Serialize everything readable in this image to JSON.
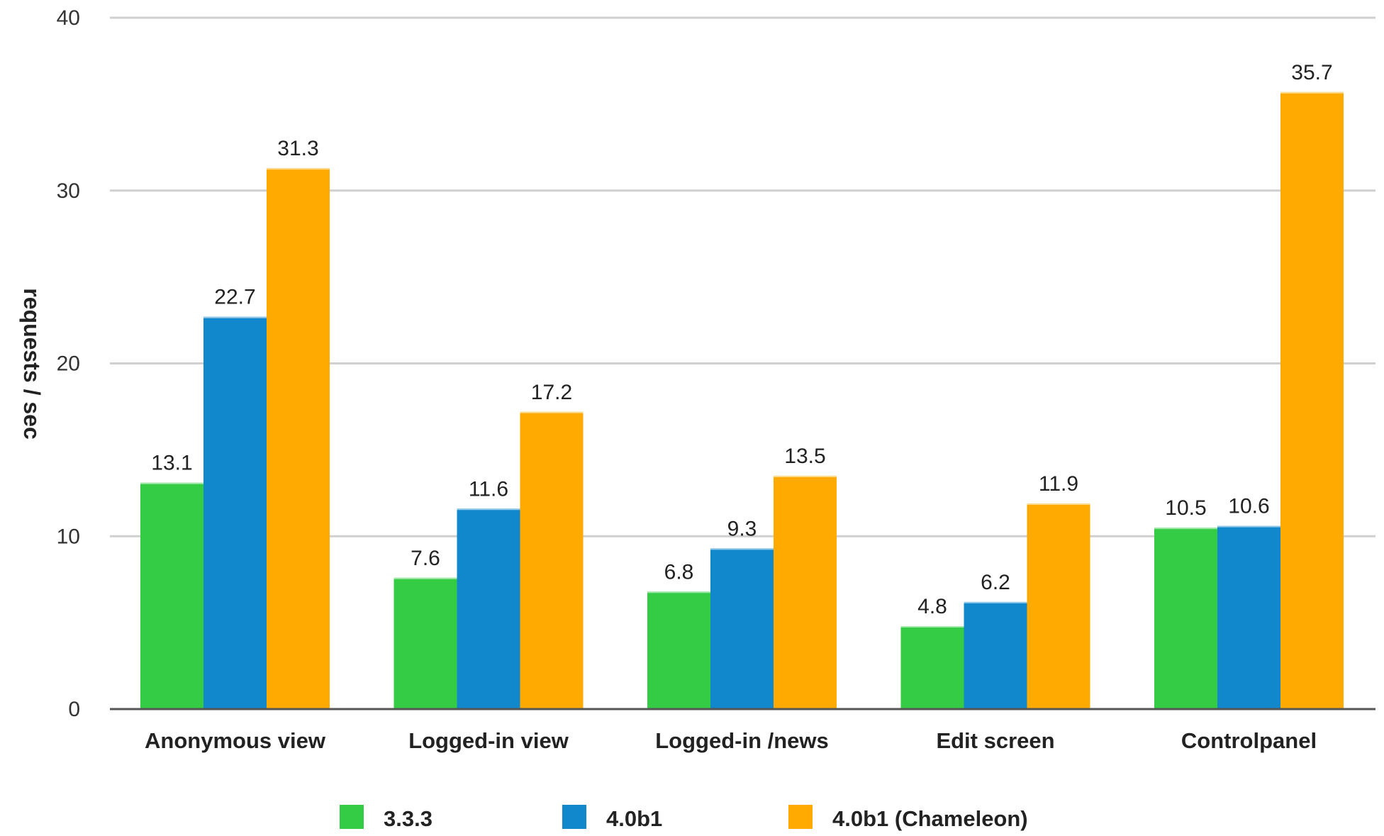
{
  "chart_data": {
    "type": "bar",
    "title": "",
    "xlabel": "",
    "ylabel": "requests / sec",
    "ylim": [
      0,
      40
    ],
    "yticks": [
      "0",
      "10",
      "20",
      "30",
      "40"
    ],
    "grid": true,
    "legend_position": "bottom",
    "categories": [
      "Anonymous view",
      "Logged-in view",
      "Logged-in /news",
      "Edit screen",
      "Controlpanel"
    ],
    "series": [
      {
        "name": "3.3.3",
        "color": "#33cc44",
        "values": [
          13.1,
          7.6,
          6.8,
          4.8,
          10.5
        ],
        "labels": [
          "13.1",
          "7.6",
          "6.8",
          "4.8",
          "10.5"
        ]
      },
      {
        "name": "4.0b1",
        "color": "#1188cc",
        "values": [
          22.7,
          11.6,
          9.3,
          6.2,
          10.6
        ],
        "labels": [
          "22.7",
          "11.6",
          "9.3",
          "6.2",
          "10.6"
        ]
      },
      {
        "name": "4.0b1 (Chameleon)",
        "color": "#ffaa00",
        "values": [
          31.3,
          17.2,
          13.5,
          11.9,
          35.7
        ],
        "labels": [
          "31.3",
          "17.2",
          "13.5",
          "11.9",
          "35.7"
        ]
      }
    ]
  }
}
